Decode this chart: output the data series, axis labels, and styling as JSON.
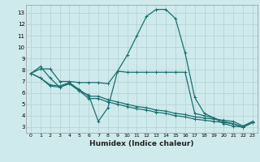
{
  "background_color": "#ceeaec",
  "grid_color": "#b8d4d6",
  "line_color": "#1a7070",
  "xlabel": "Humidex (Indice chaleur)",
  "xlim": [
    -0.5,
    23.5
  ],
  "ylim": [
    2.5,
    13.7
  ],
  "yticks": [
    3,
    4,
    5,
    6,
    7,
    8,
    9,
    10,
    11,
    12,
    13
  ],
  "xticks": [
    0,
    1,
    2,
    3,
    4,
    5,
    6,
    7,
    8,
    9,
    10,
    11,
    12,
    13,
    14,
    15,
    16,
    17,
    18,
    19,
    20,
    21,
    22,
    23
  ],
  "series": [
    {
      "x": [
        0,
        1,
        2,
        3,
        4,
        5,
        6,
        7,
        8,
        9,
        10,
        11,
        12,
        13,
        14,
        15,
        16,
        17,
        18,
        19,
        20,
        21,
        22,
        23
      ],
      "y": [
        7.7,
        8.3,
        7.3,
        6.5,
        6.8,
        6.2,
        5.8,
        3.5,
        4.7,
        7.9,
        9.3,
        11.0,
        12.7,
        13.3,
        13.3,
        12.5,
        9.5,
        5.6,
        4.2,
        3.8,
        3.3,
        3.1,
        3.0,
        3.4
      ]
    },
    {
      "x": [
        0,
        1,
        2,
        3,
        4,
        5,
        6,
        7,
        8,
        9,
        10,
        11,
        12,
        13,
        14,
        15,
        16,
        17,
        18,
        19,
        20,
        21,
        22,
        23
      ],
      "y": [
        7.7,
        8.1,
        8.1,
        7.0,
        7.0,
        6.9,
        6.9,
        6.9,
        6.8,
        7.9,
        7.8,
        7.8,
        7.8,
        7.8,
        7.8,
        7.8,
        7.8,
        4.2,
        4.0,
        3.8,
        3.5,
        3.3,
        3.0,
        3.4
      ]
    },
    {
      "x": [
        0,
        1,
        2,
        3,
        4,
        5,
        6,
        7,
        8,
        9,
        10,
        11,
        12,
        13,
        14,
        15,
        16,
        17,
        18,
        19,
        20,
        21,
        22,
        23
      ],
      "y": [
        7.7,
        7.3,
        6.6,
        6.5,
        6.8,
        6.2,
        5.5,
        5.5,
        5.2,
        5.0,
        4.8,
        4.6,
        4.5,
        4.3,
        4.2,
        4.0,
        3.9,
        3.7,
        3.6,
        3.5,
        3.4,
        3.3,
        3.0,
        3.4
      ]
    },
    {
      "x": [
        0,
        1,
        2,
        3,
        4,
        5,
        6,
        7,
        8,
        9,
        10,
        11,
        12,
        13,
        14,
        15,
        16,
        17,
        18,
        19,
        20,
        21,
        22,
        23
      ],
      "y": [
        7.7,
        7.3,
        6.7,
        6.6,
        6.9,
        6.3,
        5.7,
        5.7,
        5.4,
        5.2,
        5.0,
        4.8,
        4.7,
        4.5,
        4.4,
        4.2,
        4.1,
        3.9,
        3.8,
        3.7,
        3.6,
        3.5,
        3.1,
        3.5
      ]
    }
  ]
}
